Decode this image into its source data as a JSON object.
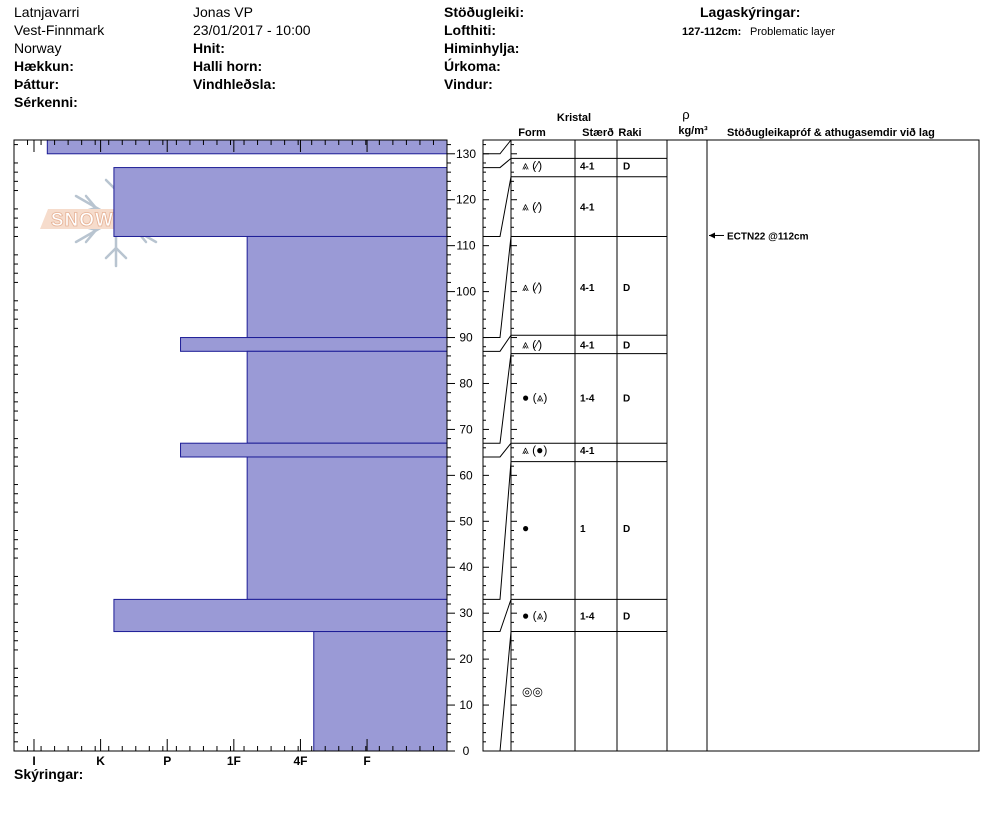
{
  "header": {
    "location_name": "Latnjavarri",
    "region": "Vest-Finnmark",
    "country": "Norway",
    "observer": "Jonas VP",
    "datetime": "23/01/2017 - 10:00",
    "elevation_label": "Hækkun:",
    "aspect_label": "Þáttur:",
    "specifics_label": "Sérkenni:",
    "coords_label": "Hnit:",
    "slope_label": "Halli horn:",
    "wind_loading_label": "Vindhleðsla:",
    "stability_label": "Stöðugleiki:",
    "air_temp_label": "Lofthiti:",
    "sky_label": "Himinhylja:",
    "precip_label": "Úrkoma:",
    "wind_label": "Vindur:",
    "layer_notes_label": "Lagaskýringar:",
    "layer_note_range": "127-112cm:",
    "layer_note_text": "Problematic layer"
  },
  "logo": {
    "text": "SNOW PILOT"
  },
  "columns": {
    "crystal": "Kristal",
    "form": "Form",
    "size": "Stærð",
    "moisture": "Raki",
    "density_symbol": "ρ",
    "density_unit": "kg/m³",
    "tests": "Stöðugleikapróf & athugasemdir við lag"
  },
  "footer": {
    "notes_label": "Skýringar:"
  },
  "colors": {
    "layer_fill": "#9a9ad6",
    "layer_stroke": "#1c1c96",
    "grid": "#000000",
    "logo_text": "#f2c8b0",
    "logo_flake": "#b8c4d0"
  },
  "chart_data": {
    "type": "bar",
    "title": "",
    "orientation": "horizontal",
    "ylim": [
      0,
      133
    ],
    "y_ticks": [
      0,
      10,
      20,
      30,
      40,
      50,
      60,
      70,
      80,
      90,
      100,
      110,
      120,
      130
    ],
    "hardness_scale": [
      "I",
      "K",
      "P",
      "1F",
      "4F",
      "F"
    ],
    "hardness_positions": {
      "I": 1,
      "K": 2,
      "P": 3,
      "1F": 4,
      "4F": 5,
      "F": 6
    },
    "hardness_max": 6.5,
    "layers": [
      {
        "bottom": 130,
        "top": 133,
        "hardness": 6.0
      },
      {
        "bottom": 112,
        "top": 127,
        "hardness": 5.0
      },
      {
        "bottom": 90,
        "top": 112,
        "hardness": 3.0
      },
      {
        "bottom": 87,
        "top": 90,
        "hardness": 4.0
      },
      {
        "bottom": 67,
        "top": 87,
        "hardness": 3.0
      },
      {
        "bottom": 64,
        "top": 67,
        "hardness": 4.0
      },
      {
        "bottom": 33,
        "top": 64,
        "hardness": 3.0
      },
      {
        "bottom": 26,
        "top": 33,
        "hardness": 5.0
      },
      {
        "bottom": 0,
        "top": 26,
        "hardness": 2.0
      }
    ],
    "boundaries": [
      133,
      129,
      125,
      112,
      90.5,
      86.5,
      67,
      63,
      33,
      26
    ],
    "boundary_depths": [
      130,
      127,
      112,
      90,
      87,
      67,
      64,
      33,
      26,
      0
    ],
    "crystal_rows": [
      {
        "y": 127.5,
        "form": "⩓ (⁄)",
        "size": "4-1",
        "moisture": "D"
      },
      {
        "y": 118.5,
        "form": "⩓ (⁄)",
        "size": "4-1",
        "moisture": ""
      },
      {
        "y": 101,
        "form": "⩓ (⁄)",
        "size": "4-1",
        "moisture": "D"
      },
      {
        "y": 88.5,
        "form": "⩓ (⁄)",
        "size": "4-1",
        "moisture": "D"
      },
      {
        "y": 77,
        "form": "● (⩓)",
        "size": "1-4",
        "moisture": "D"
      },
      {
        "y": 65.5,
        "form": "⩓ (●)",
        "size": "4-1",
        "moisture": ""
      },
      {
        "y": 48.5,
        "form": "●",
        "size": "1",
        "moisture": "D"
      },
      {
        "y": 29.5,
        "form": "● (⩓)",
        "size": "1-4",
        "moisture": "D"
      },
      {
        "y": 13,
        "form": "◎◎",
        "size": "",
        "moisture": ""
      }
    ],
    "tests": [
      {
        "depth": 112,
        "text": "ECTN22 @112cm"
      }
    ]
  }
}
